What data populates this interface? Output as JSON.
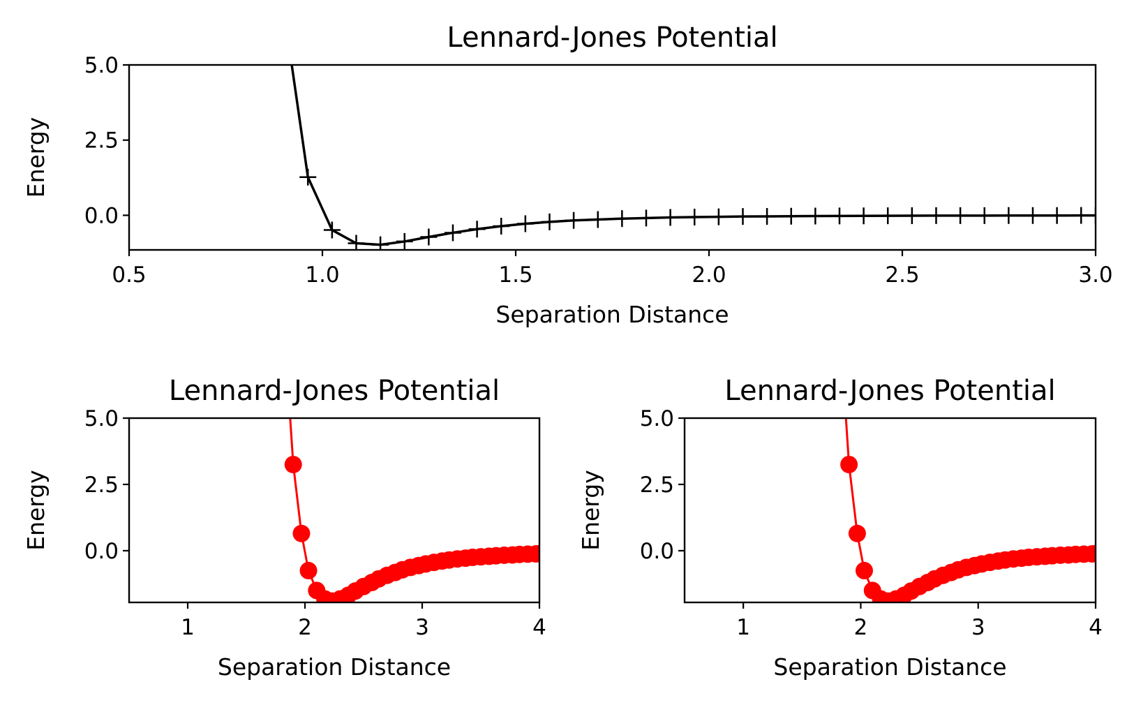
{
  "chart_data": [
    {
      "type": "line",
      "title": "Lennard-Jones Potential",
      "xlabel": "Separation Distance",
      "ylabel": "Energy",
      "xlim": [
        0.5,
        3.0
      ],
      "ylim": [
        -1.15,
        5.0
      ],
      "xticks": [
        "0.5",
        "1.0",
        "1.5",
        "2.0",
        "2.5",
        "3.0"
      ],
      "yticks": [
        "0.0",
        "2.5",
        "5.0"
      ],
      "grid": false,
      "color": "#000000",
      "marker": "plus",
      "series": [
        {
          "x": [
            0.9,
            0.9625,
            1.025,
            1.0875,
            1.15,
            1.2125,
            1.275,
            1.3375,
            1.4,
            1.4625,
            1.525,
            1.5875,
            1.65,
            1.7125,
            1.775,
            1.8375,
            1.9,
            1.9625,
            2.025,
            2.0875,
            2.15,
            2.2125,
            2.275,
            2.3375,
            2.4,
            2.4625,
            2.525,
            2.5875,
            2.65,
            2.7125,
            2.775,
            2.8375,
            2.9,
            2.9625,
            3.0
          ],
          "y": [
            6.85,
            1.27,
            -0.49,
            -0.93,
            -0.98,
            -0.87,
            -0.72,
            -0.58,
            -0.46,
            -0.36,
            -0.28,
            -0.22,
            -0.17,
            -0.14,
            -0.11,
            -0.09,
            -0.07,
            -0.06,
            -0.05,
            -0.04,
            -0.035,
            -0.029,
            -0.025,
            -0.021,
            -0.018,
            -0.015,
            -0.013,
            -0.011,
            -0.01,
            -0.009,
            -0.008,
            -0.007,
            -0.006,
            -0.005,
            -0.005
          ]
        }
      ]
    },
    {
      "type": "line",
      "title": "Lennard-Jones Potential",
      "xlabel": "Separation Distance",
      "ylabel": "Energy",
      "xlim": [
        0.5,
        4.0
      ],
      "ylim": [
        -1.95,
        5.0
      ],
      "xticks": [
        "1",
        "2",
        "3",
        "4"
      ],
      "yticks": [
        "0.0",
        "2.5",
        "5.0"
      ],
      "grid": false,
      "color": "#ff0000",
      "marker": "circle",
      "series": [
        {
          "x": [
            1.85,
            1.9,
            1.97,
            2.03,
            2.1,
            2.17,
            2.23,
            2.3,
            2.37,
            2.43,
            2.5,
            2.57,
            2.63,
            2.7,
            2.77,
            2.83,
            2.9,
            2.97,
            3.03,
            3.1,
            3.17,
            3.23,
            3.3,
            3.37,
            3.43,
            3.5,
            3.57,
            3.63,
            3.7,
            3.77,
            3.83,
            3.9,
            3.97,
            4.0
          ],
          "y": [
            6.6,
            3.25,
            0.65,
            -0.75,
            -1.5,
            -1.82,
            -1.9,
            -1.82,
            -1.68,
            -1.52,
            -1.35,
            -1.2,
            -1.06,
            -0.93,
            -0.82,
            -0.72,
            -0.63,
            -0.56,
            -0.5,
            -0.44,
            -0.39,
            -0.35,
            -0.31,
            -0.28,
            -0.25,
            -0.23,
            -0.21,
            -0.19,
            -0.17,
            -0.16,
            -0.14,
            -0.13,
            -0.12,
            -0.11
          ]
        }
      ]
    },
    {
      "type": "line",
      "title": "Lennard-Jones Potential",
      "xlabel": "Separation Distance",
      "ylabel": "Energy",
      "xlim": [
        0.5,
        4.0
      ],
      "ylim": [
        -1.95,
        5.0
      ],
      "xticks": [
        "1",
        "2",
        "3",
        "4"
      ],
      "yticks": [
        "0.0",
        "2.5",
        "5.0"
      ],
      "grid": false,
      "color": "#ff0000",
      "marker": "circle",
      "series": [
        {
          "x": [
            1.85,
            1.9,
            1.97,
            2.03,
            2.1,
            2.17,
            2.23,
            2.3,
            2.37,
            2.43,
            2.5,
            2.57,
            2.63,
            2.7,
            2.77,
            2.83,
            2.9,
            2.97,
            3.03,
            3.1,
            3.17,
            3.23,
            3.3,
            3.37,
            3.43,
            3.5,
            3.57,
            3.63,
            3.7,
            3.77,
            3.83,
            3.9,
            3.97,
            4.0
          ],
          "y": [
            6.6,
            3.25,
            0.65,
            -0.75,
            -1.5,
            -1.82,
            -1.9,
            -1.82,
            -1.68,
            -1.52,
            -1.35,
            -1.2,
            -1.06,
            -0.93,
            -0.82,
            -0.72,
            -0.63,
            -0.56,
            -0.5,
            -0.44,
            -0.39,
            -0.35,
            -0.31,
            -0.28,
            -0.25,
            -0.23,
            -0.21,
            -0.19,
            -0.17,
            -0.16,
            -0.14,
            -0.13,
            -0.12,
            -0.11
          ]
        }
      ]
    }
  ]
}
